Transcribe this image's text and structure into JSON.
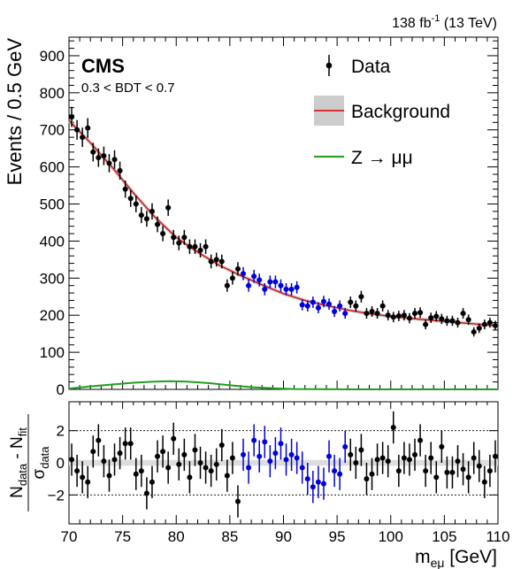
{
  "header": {
    "lumi_main": "138 fb",
    "lumi_exp": "-1",
    "lumi_energy": " (13 TeV)"
  },
  "labels": {
    "experiment": "CMS",
    "selection": "0.3 < BDT < 0.7"
  },
  "legend": [
    {
      "label": "Data",
      "kind": "data",
      "color": "#000000"
    },
    {
      "label": "Background",
      "kind": "band",
      "color": "#dd0000",
      "band_color": "#cccccc"
    },
    {
      "label": "Z → μμ",
      "kind": "line",
      "color": "#1f9f1f"
    }
  ],
  "axes": {
    "xlabel": "m",
    "xlabel_sub": "eμ",
    "xlabel_unit": " [GeV]",
    "ylabel_top": "Events / 0.5 GeV",
    "ylabel_bottom_num_main": "N",
    "ylabel_bottom_num_sub1": "data",
    "ylabel_bottom_num_mid": " - N",
    "ylabel_bottom_num_sub2": "fit",
    "ylabel_bottom_den_main": "σ",
    "ylabel_bottom_den_sub": "data"
  },
  "chart_data": {
    "type": "scatter",
    "xlim": [
      70,
      110
    ],
    "ylim_top": [
      0,
      950
    ],
    "ylim_bottom": [
      -3.8,
      3.8
    ],
    "x_ticks": [
      70,
      75,
      80,
      85,
      90,
      95,
      100,
      105,
      110
    ],
    "y_ticks_top": [
      0,
      100,
      200,
      300,
      400,
      500,
      600,
      700,
      800,
      900
    ],
    "y_ticks_bottom": [
      -2,
      0,
      2
    ],
    "bin_width": 0.5,
    "blind_region_gev": [
      86,
      96
    ],
    "data_color": "#000000",
    "blind_color": "#0000dd",
    "background_fit": [
      [
        70,
        725
      ],
      [
        72,
        665
      ],
      [
        74,
        600
      ],
      [
        76,
        530
      ],
      [
        78,
        465
      ],
      [
        80,
        410
      ],
      [
        82,
        370
      ],
      [
        84,
        335
      ],
      [
        86,
        307
      ],
      [
        88,
        282
      ],
      [
        90,
        258
      ],
      [
        92,
        240
      ],
      [
        94,
        226
      ],
      [
        96,
        214
      ],
      [
        98,
        204
      ],
      [
        100,
        197
      ],
      [
        102,
        191
      ],
      [
        104,
        186
      ],
      [
        106,
        181
      ],
      [
        108,
        176
      ],
      [
        110,
        171
      ]
    ],
    "signal": [
      [
        70,
        2
      ],
      [
        72,
        8
      ],
      [
        74,
        13
      ],
      [
        76,
        18
      ],
      [
        78,
        21
      ],
      [
        79.5,
        22
      ],
      [
        81,
        21
      ],
      [
        83,
        17
      ],
      [
        85,
        11
      ],
      [
        87,
        6
      ],
      [
        89,
        3
      ],
      [
        91,
        1
      ],
      [
        93,
        0.5
      ],
      [
        96,
        0
      ],
      [
        110,
        0
      ]
    ],
    "data_points": [
      [
        70.25,
        735
      ],
      [
        70.75,
        700
      ],
      [
        71.25,
        680
      ],
      [
        71.75,
        705
      ],
      [
        72.25,
        640
      ],
      [
        72.75,
        625
      ],
      [
        73.25,
        630
      ],
      [
        73.75,
        610
      ],
      [
        74.25,
        620
      ],
      [
        74.75,
        590
      ],
      [
        75.25,
        540
      ],
      [
        75.75,
        515
      ],
      [
        76.25,
        500
      ],
      [
        76.75,
        470
      ],
      [
        77.25,
        460
      ],
      [
        77.75,
        480
      ],
      [
        78.25,
        445
      ],
      [
        78.75,
        420
      ],
      [
        79.25,
        490
      ],
      [
        79.75,
        410
      ],
      [
        80.25,
        395
      ],
      [
        80.75,
        410
      ],
      [
        81.25,
        385
      ],
      [
        81.75,
        385
      ],
      [
        82.25,
        375
      ],
      [
        82.75,
        385
      ],
      [
        83.25,
        345
      ],
      [
        83.75,
        350
      ],
      [
        84.25,
        345
      ],
      [
        84.75,
        280
      ],
      [
        85.25,
        300
      ],
      [
        85.75,
        325
      ],
      [
        86.25,
        312
      ],
      [
        86.75,
        280
      ],
      [
        87.25,
        305
      ],
      [
        87.75,
        295
      ],
      [
        88.25,
        270
      ],
      [
        88.75,
        290
      ],
      [
        89.25,
        290
      ],
      [
        89.75,
        280
      ],
      [
        90.25,
        270
      ],
      [
        90.75,
        270
      ],
      [
        91.25,
        275
      ],
      [
        91.75,
        228
      ],
      [
        92.25,
        225
      ],
      [
        92.75,
        235
      ],
      [
        93.25,
        220
      ],
      [
        93.75,
        237
      ],
      [
        94.25,
        230
      ],
      [
        94.75,
        210
      ],
      [
        95.25,
        225
      ],
      [
        95.75,
        205
      ],
      [
        96.25,
        235
      ],
      [
        96.75,
        225
      ],
      [
        97.25,
        250
      ],
      [
        97.75,
        205
      ],
      [
        98.25,
        210
      ],
      [
        98.75,
        205
      ],
      [
        99.25,
        225
      ],
      [
        99.75,
        200
      ],
      [
        100.25,
        195
      ],
      [
        100.75,
        198
      ],
      [
        101.25,
        200
      ],
      [
        101.75,
        192
      ],
      [
        102.25,
        205
      ],
      [
        102.75,
        207
      ],
      [
        103.25,
        175
      ],
      [
        103.75,
        193
      ],
      [
        104.25,
        197
      ],
      [
        104.75,
        190
      ],
      [
        105.25,
        185
      ],
      [
        105.75,
        185
      ],
      [
        106.25,
        180
      ],
      [
        106.75,
        205
      ],
      [
        107.25,
        188
      ],
      [
        107.75,
        155
      ],
      [
        108.25,
        165
      ],
      [
        108.75,
        175
      ],
      [
        109.25,
        180
      ],
      [
        109.75,
        172
      ]
    ],
    "pulls": [
      [
        70.25,
        0.2
      ],
      [
        70.75,
        -0.5
      ],
      [
        71.25,
        -0.9
      ],
      [
        71.75,
        -1.2
      ],
      [
        72.25,
        0.7
      ],
      [
        72.75,
        1.4
      ],
      [
        73.25,
        0.1
      ],
      [
        73.75,
        -0.8
      ],
      [
        74.25,
        0.2
      ],
      [
        74.75,
        0.6
      ],
      [
        75.25,
        1.2
      ],
      [
        75.75,
        1.2
      ],
      [
        76.25,
        -0.7
      ],
      [
        76.75,
        -0.5
      ],
      [
        77.25,
        -1.9
      ],
      [
        77.75,
        -1.2
      ],
      [
        78.25,
        0.4
      ],
      [
        78.75,
        0.7
      ],
      [
        79.25,
        -0.3
      ],
      [
        79.75,
        1.5
      ],
      [
        80.25,
        -0.1
      ],
      [
        80.75,
        0.5
      ],
      [
        81.25,
        -0.9
      ],
      [
        81.75,
        0.8
      ],
      [
        82.25,
        0.0
      ],
      [
        82.75,
        -0.3
      ],
      [
        83.25,
        -0.5
      ],
      [
        83.75,
        -0.1
      ],
      [
        84.25,
        1.1
      ],
      [
        84.75,
        -0.8
      ],
      [
        85.25,
        0.3
      ],
      [
        85.75,
        -2.4
      ],
      [
        86.25,
        0.5
      ],
      [
        86.75,
        -0.3
      ],
      [
        87.25,
        1.4
      ],
      [
        87.75,
        0.4
      ],
      [
        88.25,
        1.3
      ],
      [
        88.75,
        0.1
      ],
      [
        89.25,
        0.6
      ],
      [
        89.75,
        1.2
      ],
      [
        90.25,
        0.2
      ],
      [
        90.75,
        0.5
      ],
      [
        91.25,
        0.3
      ],
      [
        91.75,
        -0.3
      ],
      [
        92.25,
        -1.0
      ],
      [
        92.75,
        -1.5
      ],
      [
        93.25,
        -1.2
      ],
      [
        93.75,
        -1.3
      ],
      [
        94.25,
        0.4
      ],
      [
        94.75,
        -0.5
      ],
      [
        95.25,
        -0.7
      ],
      [
        95.75,
        1.0
      ],
      [
        96.25,
        0.5
      ],
      [
        96.75,
        0.0
      ],
      [
        97.25,
        0.8
      ],
      [
        97.75,
        -1.0
      ],
      [
        98.25,
        -0.7
      ],
      [
        98.75,
        0.2
      ],
      [
        99.25,
        0.3
      ],
      [
        99.75,
        0.1
      ],
      [
        100.25,
        2.2
      ],
      [
        100.75,
        -0.5
      ],
      [
        101.25,
        0.3
      ],
      [
        101.75,
        0.2
      ],
      [
        102.25,
        0.5
      ],
      [
        102.75,
        1.4
      ],
      [
        103.25,
        -0.5
      ],
      [
        103.75,
        0.3
      ],
      [
        104.25,
        -0.9
      ],
      [
        104.75,
        1.0
      ],
      [
        105.25,
        -0.6
      ],
      [
        105.75,
        -0.6
      ],
      [
        106.25,
        0.1
      ],
      [
        106.75,
        -0.4
      ],
      [
        107.25,
        -0.9
      ],
      [
        107.75,
        0.3
      ],
      [
        108.25,
        -0.2
      ],
      [
        108.75,
        -1.2
      ],
      [
        109.25,
        -0.5
      ],
      [
        109.75,
        0.4
      ]
    ],
    "pull_err": 1.0,
    "band_half_width": 0.18
  }
}
